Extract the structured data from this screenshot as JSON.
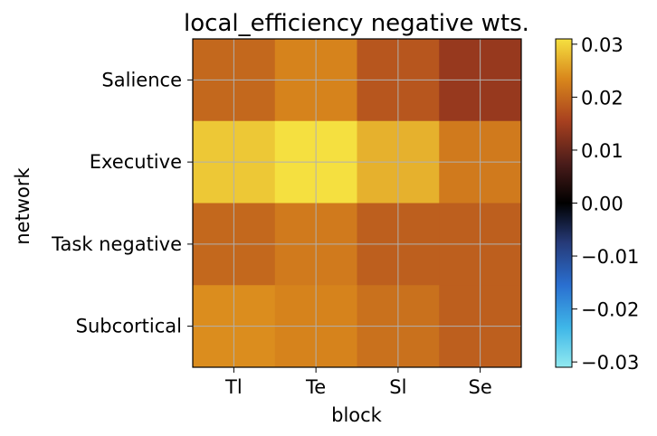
{
  "chart_data": {
    "type": "heatmap",
    "title": "local_efficiency negative wts.",
    "xlabel": "block",
    "ylabel": "network",
    "x_categories": [
      "Tl",
      "Te",
      "Sl",
      "Se"
    ],
    "y_categories": [
      "Salience",
      "Executive",
      "Task negative",
      "Subcortical"
    ],
    "values": [
      [
        0.02,
        0.023,
        0.018,
        0.014
      ],
      [
        0.029,
        0.031,
        0.027,
        0.022
      ],
      [
        0.02,
        0.022,
        0.019,
        0.019
      ],
      [
        0.024,
        0.023,
        0.021,
        0.019
      ]
    ],
    "vmin": -0.031,
    "vmax": 0.031,
    "colorbar": {
      "ticks": [
        "0.03",
        "0.02",
        "0.01",
        "0.00",
        "−0.01",
        "−0.02",
        "−0.03"
      ],
      "tick_values": [
        0.03,
        0.02,
        0.01,
        0.0,
        -0.01,
        -0.02,
        -0.03
      ]
    },
    "grid": true,
    "colormap_stops": [
      {
        "v": 0.0,
        "c": "#92eaf0"
      },
      {
        "v": 0.12,
        "c": "#3fb7e8"
      },
      {
        "v": 0.25,
        "c": "#2a6fd0"
      },
      {
        "v": 0.38,
        "c": "#263a78"
      },
      {
        "v": 0.5,
        "c": "#000000"
      },
      {
        "v": 0.62,
        "c": "#4a1c1a"
      },
      {
        "v": 0.75,
        "c": "#a8401f"
      },
      {
        "v": 0.88,
        "c": "#d9881c"
      },
      {
        "v": 1.0,
        "c": "#f5e040"
      }
    ]
  }
}
